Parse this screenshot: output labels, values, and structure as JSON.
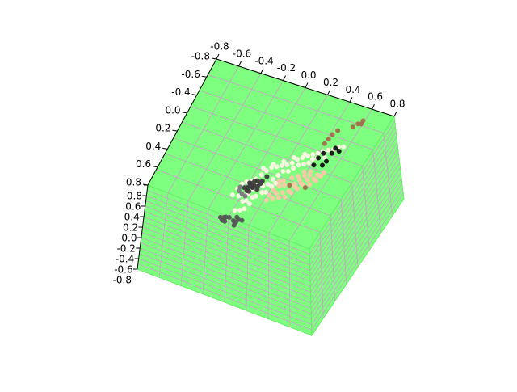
{
  "chart_data": {
    "type": "scatter",
    "projection": "3d",
    "title": "",
    "xlabel": "",
    "ylabel": "",
    "zlabel": "",
    "xlim": [
      -0.8,
      0.8
    ],
    "ylim": [
      -0.8,
      0.8
    ],
    "zlim": [
      -0.8,
      0.8
    ],
    "ticks_x": [
      "-0.8",
      "-0.6",
      "-0.4",
      "-0.2",
      "0.0",
      "0.2",
      "0.4",
      "0.6",
      "0.8"
    ],
    "ticks_y": [
      "-0.8",
      "-0.6",
      "-0.4",
      "0.0",
      "0.2",
      "0.4",
      "0.6",
      "0.8"
    ],
    "ticks_z": [
      "0.8",
      "0.6",
      "0.4",
      "0.2",
      "0.0",
      "-0.2",
      "-0.4",
      "-0.6",
      "-0.8"
    ],
    "grid": true,
    "pane_color": "#7fff7f",
    "pane_edge_color": "#66ee66",
    "grid_color": "#c8a0c8",
    "series": [
      {
        "color": "#fff7e6",
        "points": [
          [
            -0.45,
            -0.1,
            0.55
          ],
          [
            -0.4,
            -0.05,
            0.6
          ],
          [
            -0.35,
            0.0,
            0.58
          ],
          [
            -0.3,
            0.05,
            0.52
          ],
          [
            -0.25,
            0.1,
            0.5
          ],
          [
            -0.2,
            0.12,
            0.55
          ],
          [
            -0.15,
            0.15,
            0.6
          ],
          [
            -0.1,
            0.18,
            0.62
          ],
          [
            -0.05,
            0.2,
            0.58
          ],
          [
            0.0,
            0.22,
            0.55
          ],
          [
            0.05,
            0.25,
            0.5
          ],
          [
            0.1,
            0.28,
            0.48
          ],
          [
            0.15,
            0.3,
            0.52
          ],
          [
            0.2,
            0.32,
            0.5
          ],
          [
            0.25,
            0.35,
            0.48
          ],
          [
            0.3,
            0.38,
            0.45
          ],
          [
            -0.5,
            -0.15,
            0.45
          ],
          [
            -0.45,
            -0.2,
            0.4
          ],
          [
            -0.4,
            -0.15,
            0.35
          ],
          [
            -0.35,
            -0.1,
            0.3
          ],
          [
            -0.3,
            -0.05,
            0.35
          ],
          [
            -0.25,
            0.0,
            0.4
          ],
          [
            -0.2,
            0.02,
            0.3
          ],
          [
            -0.15,
            0.05,
            0.28
          ],
          [
            -0.1,
            0.08,
            0.35
          ],
          [
            -0.05,
            0.1,
            0.4
          ],
          [
            0.0,
            0.12,
            0.45
          ],
          [
            0.05,
            0.15,
            0.38
          ],
          [
            0.1,
            0.18,
            0.4
          ],
          [
            0.15,
            0.2,
            0.42
          ],
          [
            0.2,
            0.22,
            0.38
          ],
          [
            0.25,
            0.25,
            0.35
          ],
          [
            -0.42,
            -0.25,
            0.25
          ],
          [
            -0.38,
            -0.2,
            0.2
          ],
          [
            -0.32,
            -0.18,
            0.22
          ],
          [
            -0.28,
            -0.12,
            0.18
          ],
          [
            -0.22,
            -0.08,
            0.2
          ],
          [
            -0.18,
            -0.05,
            0.15
          ],
          [
            -0.12,
            0.0,
            0.22
          ],
          [
            -0.08,
            0.03,
            0.25
          ],
          [
            0.35,
            0.42,
            0.4
          ],
          [
            0.4,
            0.45,
            0.38
          ],
          [
            0.45,
            0.48,
            0.35
          ],
          [
            0.3,
            0.4,
            0.3
          ],
          [
            0.35,
            0.45,
            0.25
          ],
          [
            0.22,
            0.32,
            0.58
          ],
          [
            0.12,
            0.3,
            0.6
          ],
          [
            0.02,
            0.25,
            0.62
          ],
          [
            -0.08,
            0.2,
            0.68
          ],
          [
            -0.18,
            0.15,
            0.7
          ],
          [
            0.5,
            0.5,
            0.3
          ],
          [
            0.55,
            0.55,
            0.28
          ],
          [
            -0.5,
            -0.3,
            0.1
          ],
          [
            -0.45,
            -0.28,
            0.05
          ],
          [
            -0.4,
            -0.22,
            0.0
          ],
          [
            -0.35,
            -0.2,
            0.08
          ],
          [
            0.6,
            0.6,
            0.2
          ],
          [
            0.42,
            0.5,
            0.15
          ]
        ]
      },
      {
        "color": "#ffc8aa",
        "points": [
          [
            -0.1,
            0.0,
            0.1
          ],
          [
            -0.05,
            0.02,
            0.15
          ],
          [
            0.0,
            0.05,
            0.1
          ],
          [
            0.05,
            0.08,
            0.05
          ],
          [
            0.1,
            0.1,
            0.0
          ],
          [
            0.15,
            0.12,
            0.05
          ],
          [
            0.2,
            0.15,
            0.1
          ],
          [
            0.25,
            0.18,
            0.05
          ],
          [
            -0.08,
            -0.02,
            0.0
          ],
          [
            -0.02,
            0.0,
            -0.05
          ],
          [
            0.04,
            0.03,
            -0.1
          ],
          [
            0.1,
            0.05,
            -0.05
          ],
          [
            0.16,
            0.08,
            -0.02
          ],
          [
            0.22,
            0.1,
            0.0
          ],
          [
            0.28,
            0.12,
            -0.05
          ],
          [
            -0.12,
            -0.05,
            -0.1
          ],
          [
            -0.06,
            -0.02,
            -0.15
          ],
          [
            0.0,
            0.0,
            -0.2
          ],
          [
            0.06,
            0.02,
            -0.15
          ],
          [
            0.12,
            0.05,
            -0.12
          ],
          [
            0.18,
            0.08,
            -0.1
          ],
          [
            0.24,
            0.1,
            -0.15
          ],
          [
            0.3,
            0.12,
            -0.12
          ],
          [
            -0.15,
            -0.08,
            0.05
          ],
          [
            -0.18,
            -0.1,
            -0.05
          ],
          [
            0.32,
            0.15,
            0.0
          ],
          [
            0.35,
            0.18,
            -0.08
          ],
          [
            0.0,
            0.1,
            0.2
          ],
          [
            0.08,
            0.12,
            0.18
          ],
          [
            0.14,
            0.15,
            0.15
          ],
          [
            0.2,
            0.2,
            0.18
          ],
          [
            -0.04,
            0.05,
            0.25
          ],
          [
            0.26,
            0.2,
            0.12
          ],
          [
            0.38,
            0.2,
            -0.02
          ]
        ]
      },
      {
        "color": "#555555",
        "points": [
          [
            -0.6,
            -0.3,
            0.0
          ],
          [
            -0.62,
            -0.32,
            -0.05
          ],
          [
            -0.58,
            -0.28,
            -0.02
          ],
          [
            -0.6,
            -0.35,
            -0.08
          ],
          [
            -0.5,
            -0.2,
            -0.25
          ],
          [
            -0.48,
            -0.22,
            -0.3
          ],
          [
            -0.45,
            -0.18,
            -0.28
          ],
          [
            -0.5,
            -0.25,
            -0.35
          ],
          [
            -0.46,
            -0.15,
            -0.22
          ],
          [
            -0.42,
            -0.2,
            -0.32
          ],
          [
            -0.55,
            -0.3,
            -0.05
          ],
          [
            -0.63,
            -0.28,
            0.02
          ]
        ]
      },
      {
        "color": "#3c3c3c",
        "points": [
          [
            -0.35,
            -0.05,
            0.45
          ],
          [
            -0.32,
            0.0,
            0.42
          ],
          [
            -0.3,
            -0.02,
            0.38
          ],
          [
            -0.28,
            0.02,
            0.4
          ],
          [
            -0.25,
            0.0,
            0.35
          ],
          [
            -0.22,
            0.03,
            0.38
          ],
          [
            -0.3,
            0.05,
            0.45
          ],
          [
            -0.27,
            0.06,
            0.48
          ],
          [
            -0.34,
            -0.08,
            0.35
          ],
          [
            -0.36,
            -0.1,
            0.4
          ],
          [
            -0.2,
            0.05,
            0.42
          ],
          [
            -0.24,
            0.08,
            0.45
          ],
          [
            -0.32,
            0.03,
            0.5
          ],
          [
            -0.38,
            -0.06,
            0.48
          ],
          [
            -0.26,
            -0.04,
            0.3
          ],
          [
            -0.15,
            0.12,
            0.45
          ],
          [
            -0.29,
            0.08,
            0.33
          ]
        ]
      },
      {
        "color": "#7a7a7a",
        "points": [
          [
            -0.42,
            -0.08,
            0.55
          ],
          [
            -0.38,
            -0.12,
            0.28
          ],
          [
            -0.4,
            -0.05,
            0.32
          ],
          [
            -0.44,
            -0.14,
            0.5
          ]
        ]
      },
      {
        "color": "#111111",
        "points": [
          [
            0.3,
            0.3,
            0.2
          ],
          [
            0.35,
            0.38,
            0.3
          ],
          [
            0.4,
            0.42,
            0.35
          ],
          [
            0.42,
            0.35,
            0.15
          ],
          [
            0.48,
            0.45,
            0.25
          ],
          [
            0.52,
            0.52,
            0.3
          ],
          [
            0.55,
            0.5,
            0.2
          ],
          [
            0.38,
            0.32,
            0.1
          ]
        ]
      },
      {
        "color": "#a0704a",
        "points": [
          [
            0.42,
            0.5,
            0.55
          ],
          [
            0.46,
            0.55,
            0.6
          ],
          [
            0.5,
            0.6,
            0.65
          ],
          [
            0.55,
            0.62,
            0.7
          ],
          [
            0.7,
            0.75,
            0.55
          ],
          [
            0.75,
            0.8,
            0.55
          ],
          [
            0.78,
            0.82,
            0.5
          ],
          [
            0.8,
            0.85,
            0.55
          ],
          [
            0.05,
            0.05,
            0.05
          ],
          [
            0.2,
            0.1,
            -0.2
          ]
        ]
      }
    ]
  }
}
